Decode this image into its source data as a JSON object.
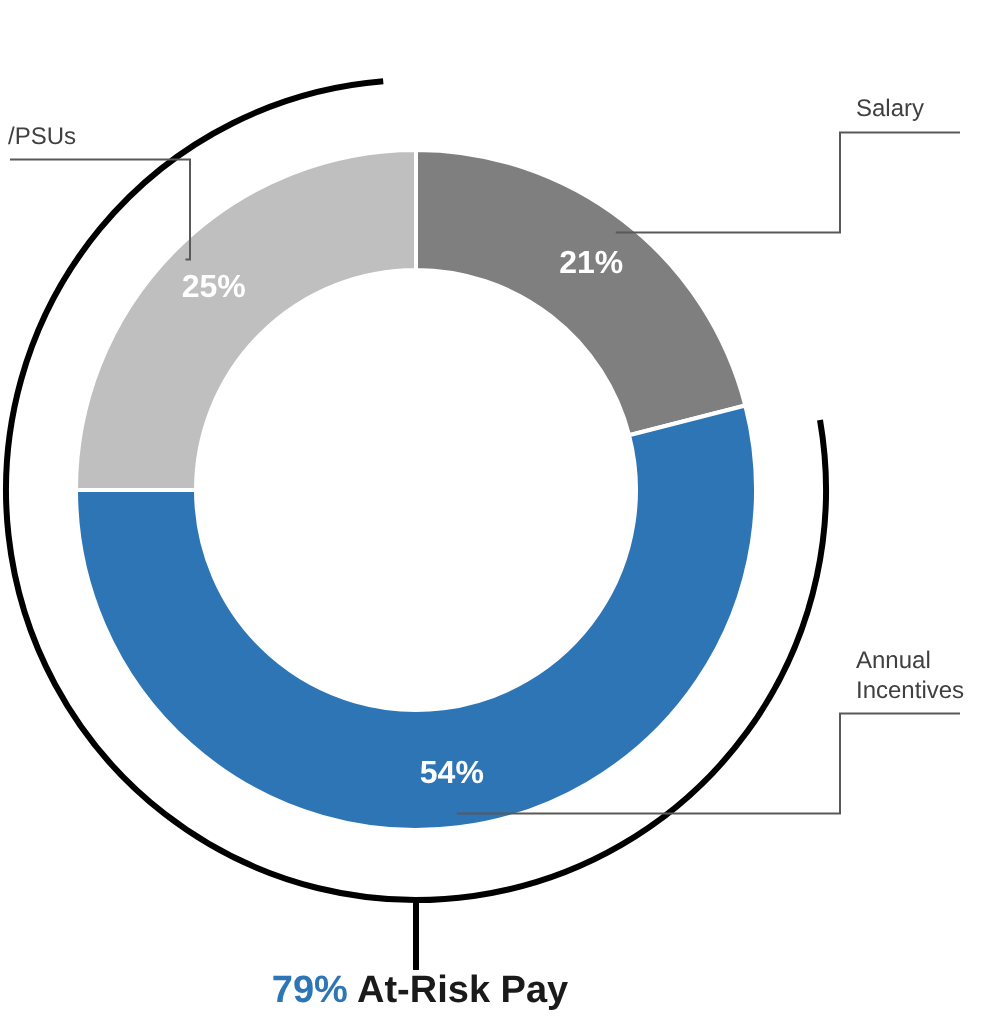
{
  "chart_data": {
    "type": "donut",
    "categories": [
      "Salary",
      "Annual Incentives",
      "/PSUs"
    ],
    "values": [
      21,
      54,
      25
    ],
    "colors": [
      "#7f7f7f",
      "#2e75b6",
      "#bfbfbf"
    ],
    "value_labels": [
      "21%",
      "54%",
      "25%"
    ],
    "annotations": [
      "79% At-Risk Pay"
    ]
  }
}
